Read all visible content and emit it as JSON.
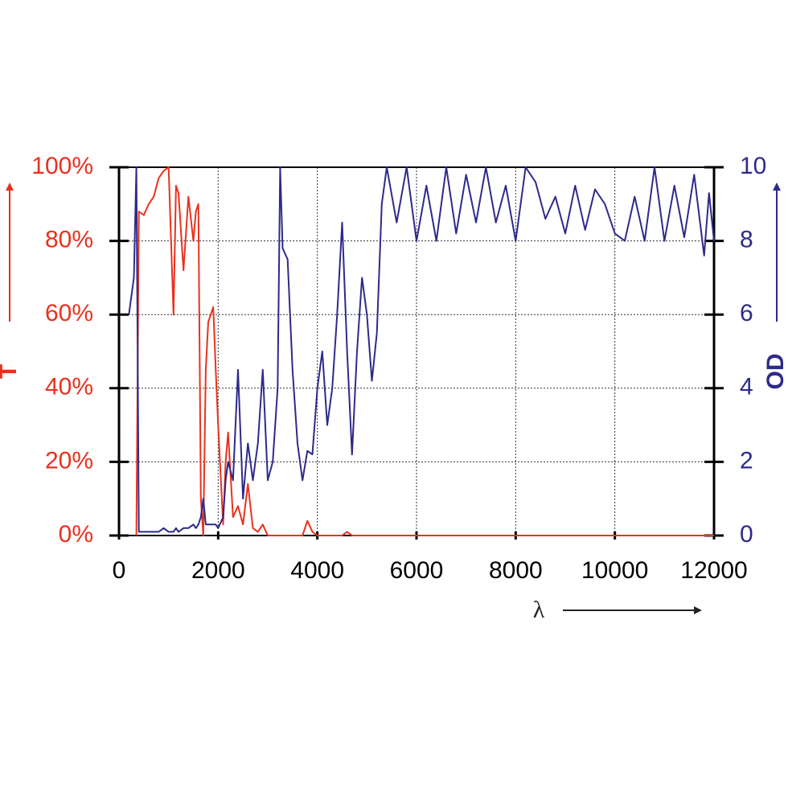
{
  "chart_data": {
    "type": "line",
    "ylabel": "T",
    "y2label": "OD",
    "xlabel": "λ",
    "x": [
      200,
      300,
      350,
      400,
      500,
      600,
      700,
      800,
      900,
      1000,
      1100,
      1150,
      1200,
      1300,
      1400,
      1500,
      1550,
      1600,
      1650,
      1700,
      1750,
      1800,
      1900,
      1950,
      2000,
      2100,
      2150,
      2200,
      2300,
      2400,
      2500,
      2600,
      2700,
      2800,
      2900,
      3000,
      3100,
      3200,
      3250,
      3300,
      3400,
      3500,
      3600,
      3700,
      3800,
      3900,
      4000,
      4100,
      4200,
      4300,
      4400,
      4500,
      4600,
      4700,
      4800,
      4900,
      5000,
      5100,
      5200,
      5300,
      5400,
      5600,
      5800,
      6000,
      6200,
      6400,
      6600,
      6800,
      7000,
      7200,
      7400,
      7600,
      7800,
      8000,
      8200,
      8400,
      8600,
      8800,
      9000,
      9200,
      9400,
      9600,
      9800,
      10000,
      10200,
      10400,
      10600,
      10800,
      11000,
      11200,
      11400,
      11600,
      11800,
      11900,
      12000
    ],
    "series": [
      {
        "color": "#e8321e",
        "axis": "y",
        "values": [
          null,
          null,
          0,
          88,
          87,
          90,
          92,
          97,
          99,
          100,
          60,
          95,
          93,
          72,
          92,
          80,
          88,
          90,
          10,
          0,
          45,
          58,
          62,
          45,
          30,
          3,
          20,
          28,
          5,
          8,
          3,
          14,
          2,
          1,
          3,
          0,
          0,
          0,
          0,
          0,
          0,
          0,
          0,
          0,
          4,
          1,
          0,
          0,
          0,
          0,
          0,
          0,
          1,
          0,
          0,
          0,
          0,
          0,
          0,
          0,
          0,
          0,
          0,
          0,
          0,
          0,
          0,
          0,
          0,
          0,
          0,
          0,
          0,
          0,
          0,
          0,
          0,
          0,
          0,
          0,
          0,
          0,
          0,
          0,
          0,
          0,
          0,
          0,
          0,
          0,
          0,
          0,
          0,
          0,
          0
        ]
      },
      {
        "color": "#2e2a8a",
        "axis": "y2",
        "values": [
          6,
          7,
          10,
          0.1,
          0.1,
          0.1,
          0.1,
          0.1,
          0.2,
          0.1,
          0.1,
          0.2,
          0.1,
          0.2,
          0.2,
          0.3,
          0.2,
          0.3,
          0.5,
          1,
          0.3,
          0.3,
          0.3,
          0.3,
          0.2,
          0.5,
          1.5,
          2,
          1.5,
          4.5,
          1,
          2.5,
          1.5,
          2.5,
          4.5,
          1.5,
          2,
          4,
          10,
          7.8,
          7.5,
          4.5,
          2.5,
          1.5,
          2.3,
          2.2,
          4,
          5,
          3,
          4,
          6,
          8.5,
          5,
          2.2,
          5,
          7,
          6,
          4.2,
          5.5,
          9,
          10,
          8.5,
          10,
          8,
          9.5,
          8,
          10,
          8.2,
          9.8,
          8.5,
          10,
          8.5,
          9.5,
          8,
          10,
          9.6,
          8.6,
          9.2,
          8.2,
          9.5,
          8.3,
          9.4,
          9,
          8.2,
          8,
          9.2,
          8,
          10,
          8,
          9.5,
          8.1,
          9.8,
          7.6,
          9.3,
          8
        ]
      }
    ],
    "xlim": [
      0,
      12000
    ],
    "xticks": [
      0,
      2000,
      4000,
      6000,
      8000,
      10000,
      12000
    ],
    "ylim": [
      0,
      100
    ],
    "yticks": [
      {
        "value": 0,
        "label": "0%"
      },
      {
        "value": 20,
        "label": "20%"
      },
      {
        "value": 40,
        "label": "40%"
      },
      {
        "value": 60,
        "label": "60%"
      },
      {
        "value": 80,
        "label": "80%"
      },
      {
        "value": 100,
        "label": "100%"
      }
    ],
    "y2lim": [
      0,
      10
    ],
    "y2ticks": [
      0,
      2,
      4,
      6,
      8,
      10
    ],
    "grid": true
  }
}
